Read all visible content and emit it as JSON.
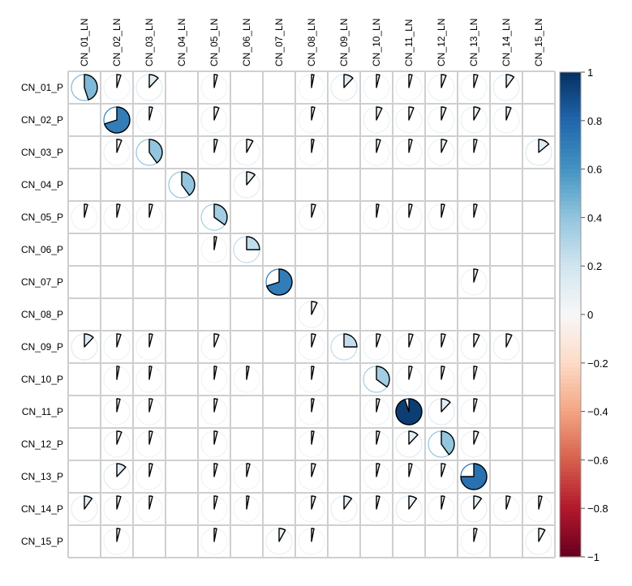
{
  "chart_data": {
    "type": "heatmap",
    "style": "corrplot-pie",
    "columns": [
      "CN_01_LN",
      "CN_02_LN",
      "CN_03_LN",
      "CN_04_LN",
      "CN_05_LN",
      "CN_06_LN",
      "CN_07_LN",
      "CN_08_LN",
      "CN_09_LN",
      "CN_10_LN",
      "CN_11_LN",
      "CN_12_LN",
      "CN_13_LN",
      "CN_14_LN",
      "CN_15_LN"
    ],
    "rows": [
      "CN_01_P",
      "CN_02_P",
      "CN_03_P",
      "CN_04_P",
      "CN_05_P",
      "CN_06_P",
      "CN_07_P",
      "CN_08_P",
      "CN_09_P",
      "CN_10_P",
      "CN_11_P",
      "CN_12_P",
      "CN_13_P",
      "CN_14_P",
      "CN_15_P"
    ],
    "values": [
      [
        0.45,
        0.05,
        0.12,
        null,
        0.04,
        null,
        null,
        0.03,
        0.12,
        0.04,
        0.04,
        0.06,
        0.05,
        0.1,
        null
      ],
      [
        null,
        0.7,
        0.04,
        null,
        0.06,
        null,
        null,
        0.04,
        null,
        0.07,
        0.06,
        0.06,
        0.08,
        0.06,
        null
      ],
      [
        null,
        0.06,
        0.4,
        null,
        0.04,
        0.08,
        null,
        0.03,
        null,
        0.05,
        0.04,
        0.07,
        0.04,
        null,
        0.14
      ],
      [
        null,
        null,
        null,
        0.4,
        null,
        0.11,
        null,
        null,
        null,
        null,
        null,
        null,
        null,
        null,
        null
      ],
      [
        0.04,
        0.04,
        0.04,
        null,
        0.35,
        null,
        null,
        0.05,
        null,
        0.03,
        0.04,
        0.04,
        0.04,
        null,
        null
      ],
      [
        null,
        null,
        null,
        null,
        0.03,
        0.25,
        null,
        null,
        null,
        null,
        null,
        null,
        null,
        null,
        null
      ],
      [
        null,
        null,
        null,
        null,
        null,
        null,
        0.7,
        null,
        null,
        null,
        null,
        null,
        0.05,
        null,
        null
      ],
      [
        null,
        null,
        null,
        null,
        null,
        null,
        null,
        0.07,
        null,
        null,
        null,
        null,
        null,
        null,
        null
      ],
      [
        0.12,
        0.05,
        0.04,
        null,
        0.06,
        null,
        null,
        0.05,
        0.25,
        0.05,
        0.05,
        0.05,
        0.07,
        0.07,
        null
      ],
      [
        null,
        0.03,
        0.03,
        null,
        0.03,
        0.03,
        null,
        0.03,
        null,
        0.35,
        0.04,
        0.04,
        0.04,
        null,
        null
      ],
      [
        null,
        0.04,
        0.04,
        null,
        0.04,
        null,
        null,
        0.03,
        null,
        0.04,
        0.95,
        0.12,
        0.04,
        null,
        null
      ],
      [
        null,
        0.06,
        0.04,
        null,
        0.04,
        null,
        null,
        0.03,
        null,
        0.04,
        0.12,
        0.4,
        0.06,
        null,
        null
      ],
      [
        null,
        0.12,
        0.04,
        null,
        0.04,
        0.04,
        null,
        0.05,
        null,
        0.04,
        0.04,
        0.05,
        0.75,
        null,
        null
      ],
      [
        0.1,
        0.05,
        0.04,
        null,
        0.04,
        0.03,
        null,
        0.05,
        0.1,
        0.04,
        0.1,
        0.04,
        0.1,
        0.05,
        0.04
      ],
      [
        null,
        0.04,
        null,
        null,
        0.03,
        null,
        0.08,
        0.03,
        null,
        null,
        null,
        null,
        0.04,
        null,
        0.08
      ]
    ],
    "colorbar": {
      "range": [
        -1,
        1
      ],
      "tick_labels": [
        "1",
        "0.8",
        "0.6",
        "0.4",
        "0.2",
        "0",
        "−0.2",
        "−0.4",
        "−0.6",
        "−0.8",
        "−1"
      ],
      "colors": {
        "neg": "#67001f",
        "mid": "#f7f7f7",
        "pos": "#053061"
      }
    },
    "grid": true,
    "title": "",
    "xlabel": "",
    "ylabel": ""
  }
}
